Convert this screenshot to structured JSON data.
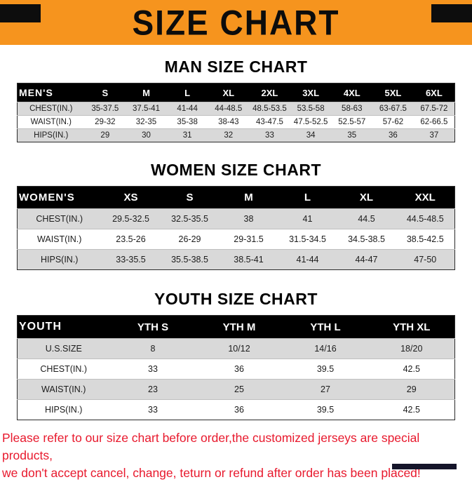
{
  "page": {
    "title": "SIZE CHART"
  },
  "colors": {
    "banner_orange": "#F6941E",
    "table_header_bg": "#000000",
    "row_stripe": "#D9D9D9",
    "footer_red": "#E8192D"
  },
  "sections": [
    {
      "heading": "MAN SIZE CHART",
      "table": {
        "header": [
          "MEN'S",
          "S",
          "M",
          "L",
          "XL",
          "2XL",
          "3XL",
          "4XL",
          "5XL",
          "6XL"
        ],
        "rows": [
          [
            "CHEST(IN.)",
            "35-37.5",
            "37.5-41",
            "41-44",
            "44-48.5",
            "48.5-53.5",
            "53.5-58",
            "58-63",
            "63-67.5",
            "67.5-72"
          ],
          [
            "WAIST(IN.)",
            "29-32",
            "32-35",
            "35-38",
            "38-43",
            "43-47.5",
            "47.5-52.5",
            "52.5-57",
            "57-62",
            "62-66.5"
          ],
          [
            "HIPS(IN.)",
            "29",
            "30",
            "31",
            "32",
            "33",
            "34",
            "35",
            "36",
            "37"
          ]
        ]
      }
    },
    {
      "heading": "WOMEN SIZE CHART",
      "table": {
        "header": [
          "WOMEN'S",
          "XS",
          "S",
          "M",
          "L",
          "XL",
          "XXL"
        ],
        "rows": [
          [
            "CHEST(IN.)",
            "29.5-32.5",
            "32.5-35.5",
            "38",
            "41",
            "44.5",
            "44.5-48.5"
          ],
          [
            "WAIST(IN.)",
            "23.5-26",
            "26-29",
            "29-31.5",
            "31.5-34.5",
            "34.5-38.5",
            "38.5-42.5"
          ],
          [
            "HIPS(IN.)",
            "33-35.5",
            "35.5-38.5",
            "38.5-41",
            "41-44",
            "44-47",
            "47-50"
          ]
        ]
      }
    },
    {
      "heading": "YOUTH SIZE CHART",
      "table": {
        "header": [
          "YOUTH",
          "YTH S",
          "YTH M",
          "YTH L",
          "YTH XL"
        ],
        "rows": [
          [
            "U.S.SIZE",
            "8",
            "10/12",
            "14/16",
            "18/20"
          ],
          [
            "CHEST(IN.)",
            "33",
            "36",
            "39.5",
            "42.5"
          ],
          [
            "WAIST(IN.)",
            "23",
            "25",
            "27",
            "29"
          ],
          [
            "HIPS(IN.)",
            "33",
            "36",
            "39.5",
            "42.5"
          ]
        ]
      }
    }
  ],
  "footer": {
    "line1": "Please refer to our size chart before order,the customized jerseys are special products,",
    "line2": "we don't accept cancel, change, teturn or refund after order has been placed!"
  }
}
